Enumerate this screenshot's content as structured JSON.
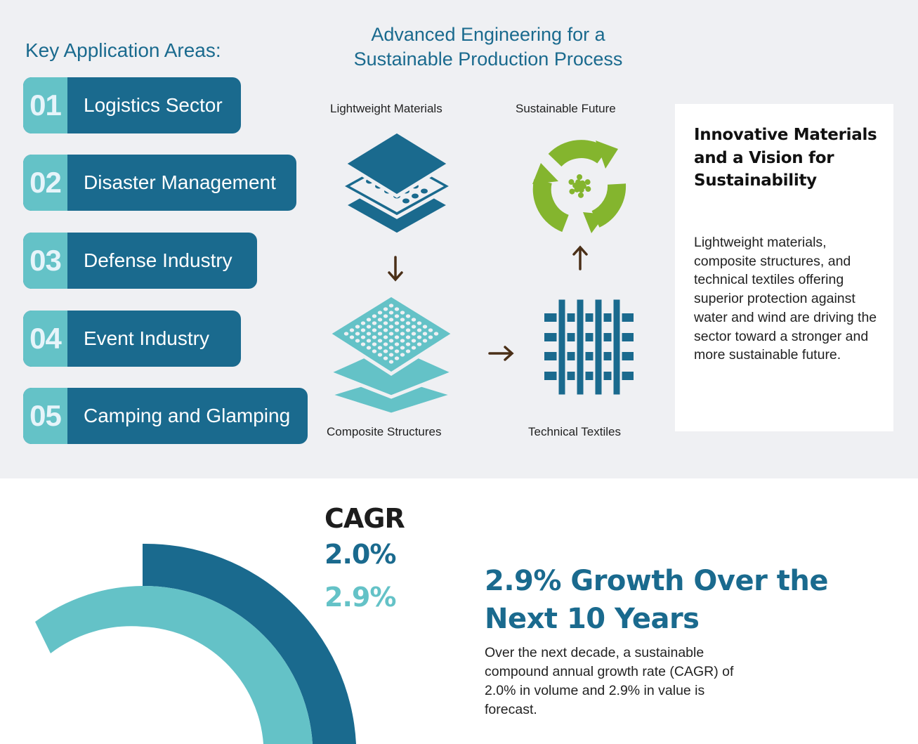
{
  "key_areas": {
    "title": "Key Application Areas:",
    "items": [
      {
        "number": "01",
        "label": "Logistics Sector"
      },
      {
        "number": "02",
        "label": "Disaster Management"
      },
      {
        "number": "03",
        "label": "Defense Industry"
      },
      {
        "number": "04",
        "label": "Event Industry"
      },
      {
        "number": "05",
        "label": "Camping and Glamping"
      }
    ]
  },
  "process": {
    "title": "Advanced Engineering for a Sustainable Production Process",
    "steps": {
      "lightweight": "Lightweight Materials",
      "composite": "Composite Structures",
      "textiles": "Technical Textiles",
      "future": "Sustainable Future"
    }
  },
  "card": {
    "title": "Innovative Materials and a Vision for Sustainability",
    "body": "Lightweight materials, composite structures, and technical textiles offering superior protection against water and wind are driving the sector toward a stronger and more sustainable future."
  },
  "cagr": {
    "label": "CAGR",
    "volume_value": "2.0%",
    "value_value": "2.9%",
    "heading": "2.9% Growth Over the Next 10 Years",
    "description": "Over the next decade, a sustainable compound annual growth rate (CAGR) of 2.0% in volume and 2.9% in value is forecast."
  },
  "colors": {
    "dark_blue": "#1a6a8e",
    "teal": "#64c2c7",
    "green": "#84b52e",
    "arrow_brown": "#4a2f17",
    "background": "#eff0f3"
  }
}
